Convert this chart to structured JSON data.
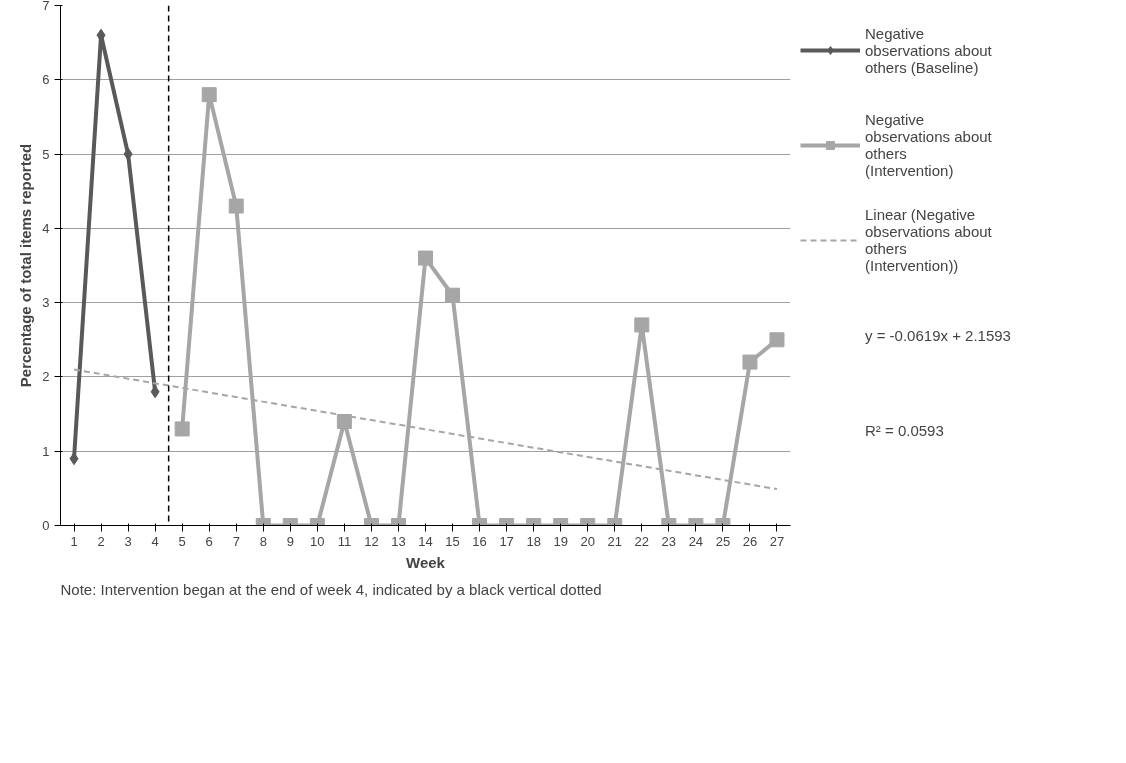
{
  "chart_data": {
    "type": "line",
    "xlabel": "Week",
    "ylabel": "Percentage of total items reported",
    "x": [
      1,
      2,
      3,
      4,
      5,
      6,
      7,
      8,
      9,
      10,
      11,
      12,
      13,
      14,
      15,
      16,
      17,
      18,
      19,
      20,
      21,
      22,
      23,
      24,
      25,
      26,
      27
    ],
    "xlim": [
      0.5,
      27.5
    ],
    "xticks": [
      1,
      2,
      3,
      4,
      5,
      6,
      7,
      8,
      9,
      10,
      11,
      12,
      13,
      14,
      15,
      16,
      17,
      18,
      19,
      20,
      21,
      22,
      23,
      24,
      25,
      26,
      27
    ],
    "series": [
      {
        "name": "Negative observations about others (Baseline)",
        "color": "#595959",
        "marker": "diamond",
        "values": [
          0.9,
          6.6,
          5.0,
          1.8,
          null,
          null,
          null,
          null,
          null,
          null,
          null,
          null,
          null,
          null,
          null,
          null,
          null,
          null,
          null,
          null,
          null,
          null,
          null,
          null,
          null,
          null,
          null
        ]
      },
      {
        "name": "Negative observations about others (Intervention)",
        "color": "#a6a6a6",
        "marker": "square",
        "values": [
          null,
          null,
          null,
          null,
          1.3,
          5.8,
          4.3,
          0,
          0,
          0,
          1.4,
          0,
          0,
          3.6,
          3.1,
          0,
          0,
          0,
          0,
          0,
          0,
          2.7,
          0,
          0,
          0,
          2.2,
          2.5
        ]
      },
      {
        "name": "Linear (Negative observations about others (Intervention))",
        "color": "#a6a6a6",
        "type": "line",
        "line_style": "dashed",
        "marker": "none",
        "x": [
          1,
          27
        ],
        "values": [
          2.1,
          0.49
        ]
      }
    ],
    "ref_lines": [
      {
        "axis": "x",
        "value": 4.5,
        "color": "#000000",
        "line_style": "dashed"
      }
    ],
    "ylim": [
      0,
      7
    ],
    "yticks": [
      0,
      1,
      2,
      3,
      4,
      5,
      6,
      7
    ],
    "grid": "y",
    "legend": "right",
    "annotations": [
      "y = -0.0619x + 2.1593",
      "R² = 0.0593",
      "Note: Intervention began at the end of week 4, indicated by a black vertical dotted"
    ]
  }
}
